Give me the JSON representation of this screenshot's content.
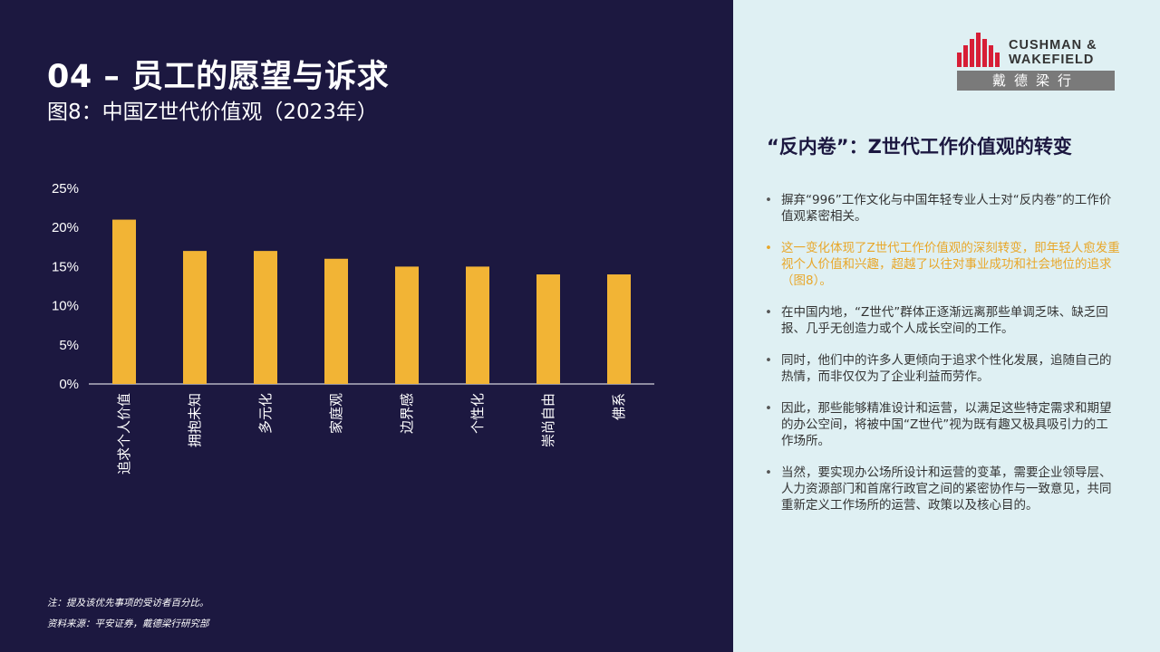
{
  "header": {
    "title": "04 – 员工的愿望与诉求",
    "subtitle": "图8：中国Z世代价值观（2023年）"
  },
  "colors": {
    "left_bg": "#1c1840",
    "right_bg": "#dff0f3",
    "bar": "#f2b435",
    "highlight_text": "#e8a72a",
    "logo_red": "#d71e36"
  },
  "chart_data": {
    "type": "bar",
    "categories": [
      "追求个人价值",
      "拥抱未知",
      "多元化",
      "家庭观",
      "边界感",
      "个性化",
      "崇尚自由",
      "佛系"
    ],
    "values": [
      21,
      17,
      17,
      16,
      15,
      15,
      14,
      14
    ],
    "y_ticks": [
      "0%",
      "5%",
      "10%",
      "15%",
      "20%",
      "25%"
    ],
    "ylim": [
      0,
      25
    ],
    "grid": false,
    "legend": "none",
    "title": "",
    "xlabel": "",
    "ylabel": ""
  },
  "footnotes": {
    "note": "注：提及该优先事项的受访者百分比。",
    "source": "资料来源：平安证券，戴德梁行研究部"
  },
  "logo": {
    "line1": "CUSHMAN &",
    "line2": "WAKEFIELD",
    "cn": "戴德梁行"
  },
  "panel": {
    "heading": "“反内卷”：Z世代工作价值观的转变",
    "bullets": [
      "摒弃“996”工作文化与中国年轻专业人士对“反内卷”的工作价值观紧密相关。",
      "这一变化体现了Z世代工作价值观的深刻转变，即年轻人愈发重视个人价值和兴趣，超越了以往对事业成功和社会地位的追求（图8）。",
      "在中国内地，“Z世代”群体正逐渐远离那些单调乏味、缺乏回报、几乎无创造力或个人成长空间的工作。",
      "同时，他们中的许多人更倾向于追求个性化发展，追随自己的热情，而非仅仅为了企业利益而劳作。",
      "因此，那些能够精准设计和运营，以满足这些特定需求和期望的办公空间，将被中国“Z世代”视为既有趣又极具吸引力的工作场所。",
      "当然，要实现办公场所设计和运营的变革，需要企业领导层、人力资源部门和首席行政官之间的紧密协作与一致意见，共同重新定义工作场所的运营、政策以及核心目的。"
    ]
  }
}
